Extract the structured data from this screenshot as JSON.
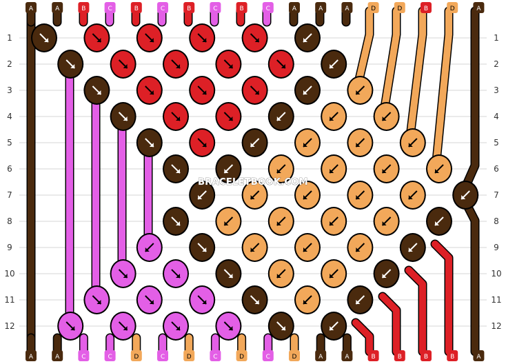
{
  "colors": {
    "A": "#4a2a0e",
    "B": "#dd2026",
    "C": "#e35fe6",
    "D": "#f2a85a"
  },
  "top_labels": [
    "A",
    "A",
    "B",
    "C",
    "B",
    "C",
    "B",
    "C",
    "B",
    "C",
    "A",
    "A",
    "A",
    "D",
    "D",
    "B",
    "D",
    "A"
  ],
  "bottom_labels": [
    "A",
    "A",
    "C",
    "C",
    "D",
    "C",
    "D",
    "C",
    "D",
    "C",
    "D",
    "A",
    "A",
    "B",
    "B",
    "B",
    "B",
    "A"
  ],
  "row_numbers": [
    "1",
    "2",
    "3",
    "4",
    "5",
    "6",
    "7",
    "8",
    "9",
    "10",
    "11",
    "12"
  ],
  "watermark": "BRACELETBOOK.COM",
  "knot_icon_names": {
    "right": "arrow-down-right-icon",
    "left": "arrow-down-left-icon"
  }
}
